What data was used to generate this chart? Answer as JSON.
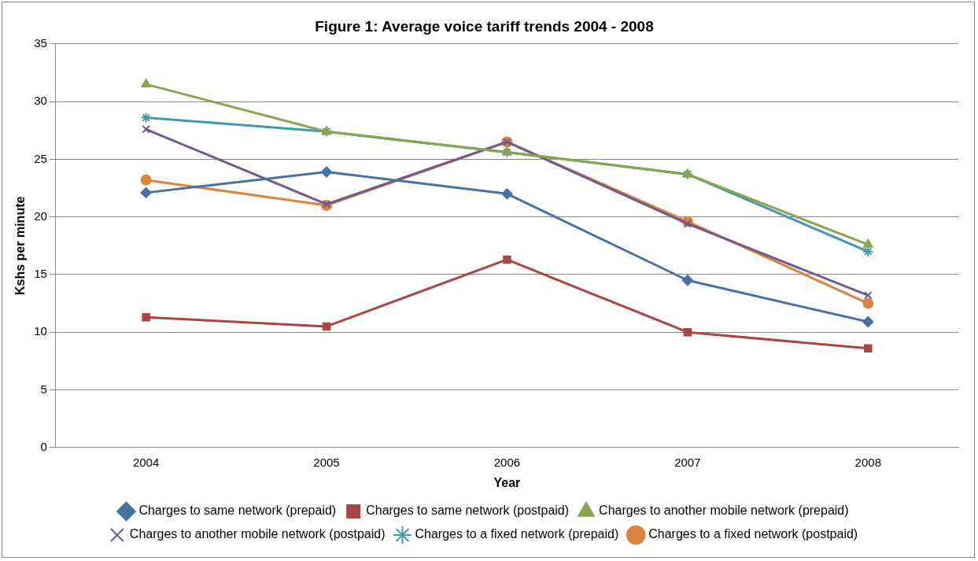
{
  "chart_data": {
    "type": "line",
    "title": "Figure 1: Average voice tariff trends 2004 - 2008",
    "xlabel": "Year",
    "ylabel": "Kshs per minute",
    "categories": [
      "2004",
      "2005",
      "2006",
      "2007",
      "2008"
    ],
    "series": [
      {
        "name": "Charges to same network (prepaid)",
        "color": "#4572a7",
        "marker": "diamond",
        "values": [
          22.1,
          23.9,
          22.0,
          14.5,
          10.9
        ]
      },
      {
        "name": "Charges to same network (postpaid)",
        "color": "#aa4643",
        "marker": "square",
        "values": [
          11.3,
          10.5,
          16.3,
          10.0,
          8.6
        ]
      },
      {
        "name": "Charges to another mobile network (prepaid)",
        "color": "#89a54e",
        "marker": "triangle",
        "values": [
          31.5,
          27.4,
          25.6,
          23.7,
          17.6
        ]
      },
      {
        "name": "Charges to another mobile network (postpaid)",
        "color": "#71588f",
        "marker": "cross",
        "values": [
          27.6,
          21.1,
          26.5,
          19.4,
          13.2
        ]
      },
      {
        "name": "Charges to a fixed network (prepaid)",
        "color": "#4198af",
        "marker": "cross",
        "values": [
          28.6,
          27.4,
          25.6,
          23.7,
          17.0
        ]
      },
      {
        "name": "Charges to a fixed network (postpaid)",
        "color": "#db843d",
        "marker": "circle",
        "values": [
          23.2,
          21.0,
          26.5,
          19.6,
          12.5
        ]
      }
    ],
    "ylim": [
      0,
      35
    ],
    "yticks": [
      0,
      5,
      10,
      15,
      20,
      25,
      30,
      35
    ],
    "grid": "y",
    "legend": "bottom",
    "line_style": "solid"
  }
}
